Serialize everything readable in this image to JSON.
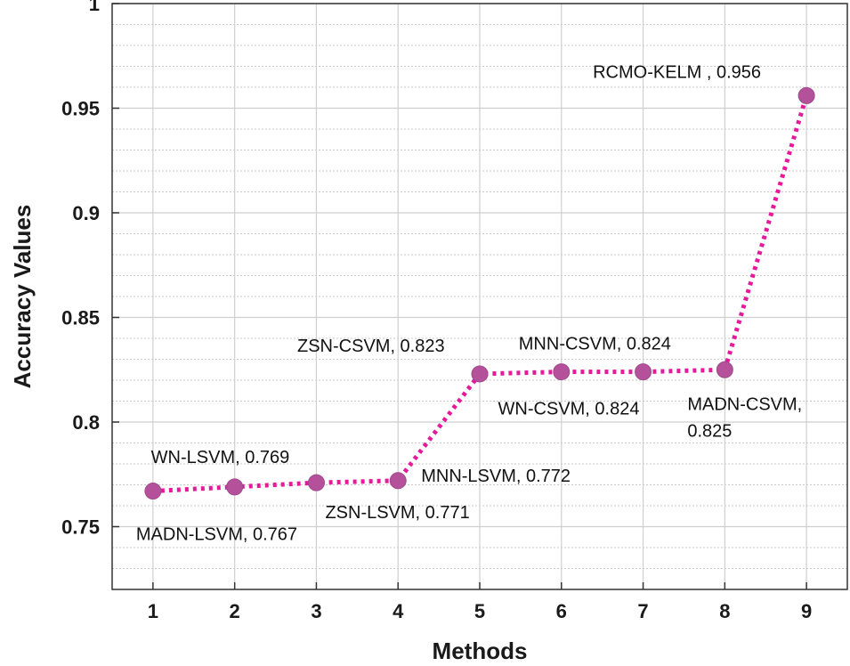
{
  "chart_data": {
    "type": "line",
    "title": "",
    "xlabel": "Methods",
    "ylabel": "Accuracy Values",
    "x": [
      1,
      2,
      3,
      4,
      5,
      6,
      7,
      8,
      9
    ],
    "xlim": [
      0.5,
      9.5
    ],
    "ylim": [
      0.72,
      1.0
    ],
    "yticks": [
      0.75,
      0.8,
      0.85,
      0.9,
      0.95,
      1
    ],
    "ytick_labels": [
      "0.75",
      "0.8",
      "0.85",
      "0.9",
      "0.95",
      "1"
    ],
    "xtick_labels": [
      "1",
      "2",
      "3",
      "4",
      "5",
      "6",
      "7",
      "8",
      "9"
    ],
    "grid": true,
    "minor_grid": true,
    "legend": "none",
    "line_color": "#e6199b",
    "line_style": "dotted",
    "marker_color": "#b5519b",
    "series": [
      {
        "values": [
          0.767,
          0.769,
          0.771,
          0.772,
          0.823,
          0.824,
          0.824,
          0.825,
          0.956
        ]
      }
    ],
    "annotations": [
      {
        "x": 1,
        "y": 0.767,
        "text": "MADN-LSVM, 0.767"
      },
      {
        "x": 2,
        "y": 0.769,
        "text": "WN-LSVM, 0.769"
      },
      {
        "x": 3,
        "y": 0.771,
        "text": "ZSN-LSVM, 0.771"
      },
      {
        "x": 4,
        "y": 0.772,
        "text": "MNN-LSVM, 0.772"
      },
      {
        "x": 5,
        "y": 0.823,
        "text": "ZSN-CSVM, 0.823"
      },
      {
        "x": 6,
        "y": 0.824,
        "text": "MNN-CSVM, 0.824"
      },
      {
        "x": 7,
        "y": 0.824,
        "text": "WN-CSVM, 0.824"
      },
      {
        "x": 8,
        "y": 0.825,
        "text": [
          "MADN-CSVM,",
          "0.825"
        ]
      },
      {
        "x": 9,
        "y": 0.956,
        "text": "RCMO-KELM , 0.956"
      }
    ]
  }
}
